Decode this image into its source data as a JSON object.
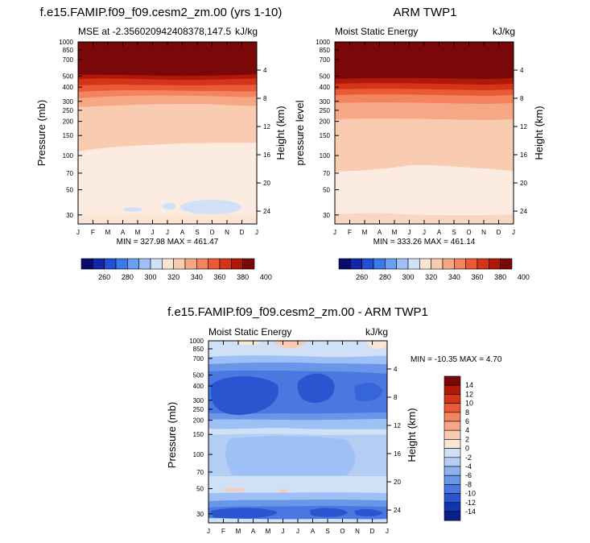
{
  "figure": {
    "title_left": "f.e15.FAMIP.f09_f09.cesm2_zm.00 (yrs 1-10)",
    "title_right": "ARM TWP1",
    "title_diff": "f.e15.FAMIP.f09_f09.cesm2_zm.00 - ARM TWP1"
  },
  "chart_data": [
    {
      "type": "contour",
      "id": "model",
      "subtitle": "MSE at -2.356020942408378,147.5",
      "units": "kJ/kg",
      "xlabel": "",
      "ylabel": "Pressure (mb)",
      "y2label": "Height (km)",
      "x_ticks": [
        "J",
        "F",
        "M",
        "A",
        "M",
        "J",
        "J",
        "A",
        "S",
        "O",
        "N",
        "D",
        "J"
      ],
      "y_ticks": [
        30,
        50,
        70,
        100,
        150,
        200,
        250,
        300,
        400,
        500,
        700,
        850,
        1000
      ],
      "ylim": [
        1000,
        25
      ],
      "height_ticks": [
        4,
        8,
        12,
        16,
        20,
        24
      ],
      "stats": "MIN = 327.98 MAX = 461.47",
      "colorbar_labels": [
        "260",
        "280",
        "300",
        "320",
        "340",
        "360",
        "380",
        "400"
      ]
    },
    {
      "type": "contour",
      "id": "obs",
      "subtitle": "Moist Static Energy",
      "units": "kJ/kg",
      "xlabel": "",
      "ylabel": "pressure level",
      "y2label": "Height (km)",
      "x_ticks": [
        "J",
        "F",
        "M",
        "A",
        "M",
        "J",
        "J",
        "A",
        "S",
        "O",
        "N",
        "D",
        "J"
      ],
      "y_ticks": [
        30,
        50,
        70,
        100,
        150,
        200,
        250,
        300,
        400,
        500,
        700,
        850,
        1000
      ],
      "ylim": [
        1000,
        25
      ],
      "height_ticks": [
        4,
        8,
        12,
        16,
        20,
        24
      ],
      "stats": "MIN = 333.26 MAX = 461.14",
      "colorbar_labels": [
        "260",
        "280",
        "300",
        "320",
        "340",
        "360",
        "380",
        "400"
      ]
    },
    {
      "type": "contour",
      "id": "diff",
      "subtitle": "Moist Static Energy",
      "units": "kJ/kg",
      "xlabel": "",
      "ylabel": "Pressure (mb)",
      "y2label": "Height (km)",
      "x_ticks": [
        "J",
        "F",
        "M",
        "A",
        "M",
        "J",
        "J",
        "A",
        "S",
        "O",
        "N",
        "D",
        "J"
      ],
      "y_ticks": [
        30,
        50,
        70,
        100,
        150,
        200,
        250,
        300,
        400,
        500,
        700,
        850,
        1000
      ],
      "ylim": [
        1000,
        25
      ],
      "height_ticks": [
        4,
        8,
        12,
        16,
        20,
        24
      ],
      "stats": "MIN = -10.35 MAX =   4.70",
      "colorbar_labels": [
        "14",
        "12",
        "10",
        "8",
        "6",
        "4",
        "2",
        "0",
        "-2",
        "-4",
        "-6",
        "-8",
        "-10",
        "-12",
        "-14"
      ]
    }
  ],
  "colors": {
    "mse_scale": [
      "#0a0a6e",
      "#1128a6",
      "#2050d6",
      "#3c78e8",
      "#6a9ef0",
      "#9ec0f5",
      "#cfe0f7",
      "#fbe5d4",
      "#f9cbb1",
      "#f6a886",
      "#f3845e",
      "#ea5a36",
      "#d43418",
      "#b01808",
      "#7a0808"
    ],
    "diff_scale": [
      "#7a0808",
      "#b01808",
      "#d43418",
      "#ea5a36",
      "#f3845e",
      "#f6a886",
      "#f9cbb1",
      "#fbe5d4",
      "#cfe0f7",
      "#b4cdf3",
      "#8fb2ef",
      "#6a96ea",
      "#4878e0",
      "#2a55d0",
      "#1235b0",
      "#08208a"
    ]
  }
}
